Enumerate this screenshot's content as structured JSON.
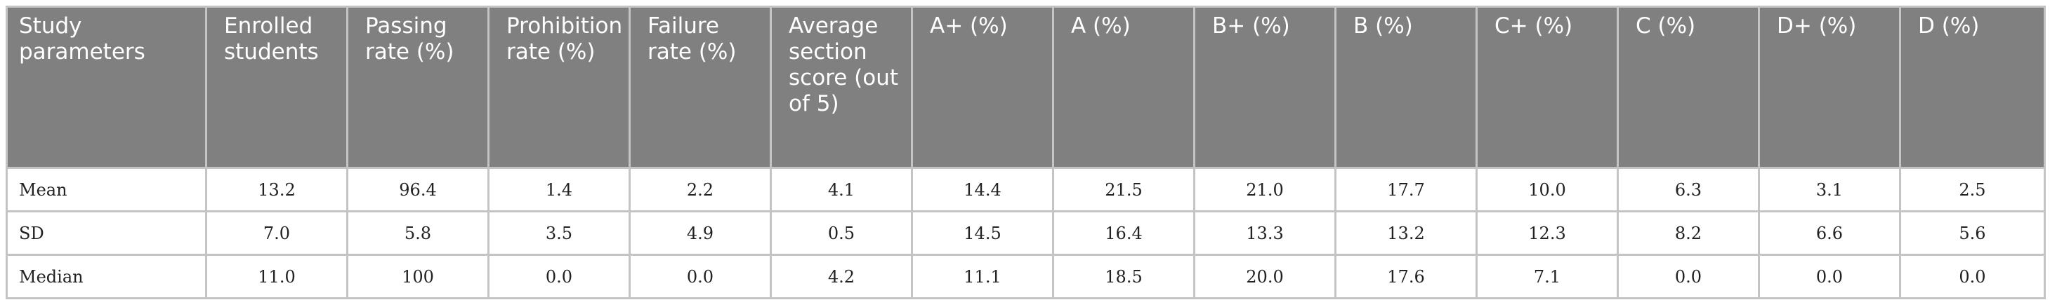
{
  "table": {
    "headers": [
      "Study parameters",
      "Enrolled students",
      "Passing rate (%)",
      "Prohibition rate (%)",
      "Failure rate (%)",
      "Average section score (out of 5)",
      "A+ (%)",
      "A (%)",
      "B+ (%)",
      "B (%)",
      "C+ (%)",
      "C (%)",
      "D+ (%)",
      "D (%)"
    ],
    "rows": [
      {
        "label": "Mean",
        "values": [
          "13.2",
          "96.4",
          "1.4",
          "2.2",
          "4.1",
          "14.4",
          "21.5",
          "21.0",
          "17.7",
          "10.0",
          "6.3",
          "3.1",
          "2.5"
        ]
      },
      {
        "label": "SD",
        "values": [
          "7.0",
          "5.8",
          "3.5",
          "4.9",
          "0.5",
          "14.5",
          "16.4",
          "13.3",
          "13.2",
          "12.3",
          "8.2",
          "6.6",
          "5.6"
        ]
      },
      {
        "label": "Median",
        "values": [
          "11.0",
          "100",
          "0.0",
          "0.0",
          "4.2",
          "11.1",
          "18.5",
          "20.0",
          "17.6",
          "7.1",
          "0.0",
          "0.0",
          "0.0"
        ]
      }
    ]
  },
  "colors": {
    "header_bg": "#808080",
    "header_text": "#ffffff",
    "border": "#c4c4c4",
    "body_text": "#222222"
  }
}
